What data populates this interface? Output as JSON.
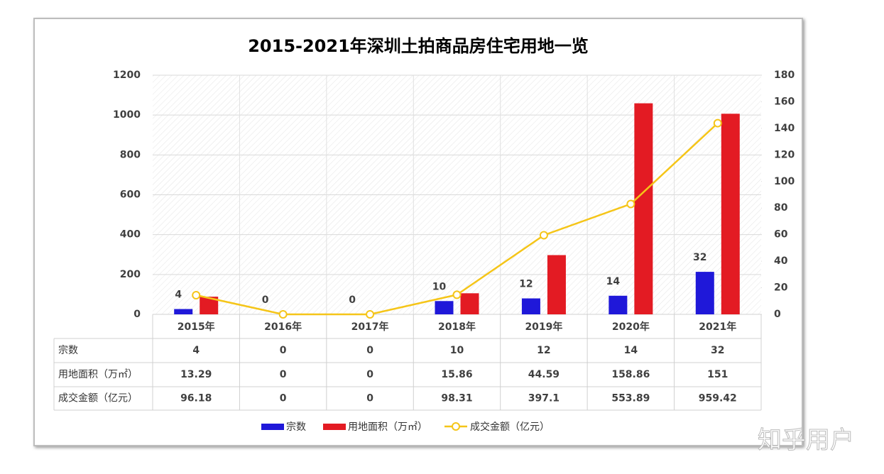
{
  "chart_data": {
    "type": "bar",
    "title": "2015-2021年深圳土拍商品房住宅用地一览",
    "categories": [
      "2015年",
      "2016年",
      "2017年",
      "2018年",
      "2019年",
      "2020年",
      "2021年"
    ],
    "series": [
      {
        "name": "宗数",
        "color": "#1f18d9",
        "axis": "y2",
        "values": [
          4,
          0,
          0,
          10,
          12,
          14,
          32
        ]
      },
      {
        "name": "用地面积（万㎡）",
        "color": "#e31b23",
        "axis": "y2",
        "values": [
          13.29,
          0,
          0,
          15.86,
          44.59,
          158.86,
          151
        ]
      },
      {
        "name": "成交金额（亿元）",
        "color": "#f5c518",
        "type": "line",
        "values": [
          96.18,
          0,
          0,
          98.31,
          397.1,
          553.89,
          959.42
        ]
      }
    ],
    "ylim": [
      0,
      1200
    ],
    "yticks": [
      0,
      200,
      400,
      600,
      800,
      1000,
      1200
    ],
    "y2lim": [
      0,
      180
    ],
    "y2ticks": [
      0,
      20,
      40,
      60,
      80,
      100,
      120,
      140,
      160,
      180
    ],
    "grid": true,
    "legend": "bottom",
    "data_table": true,
    "watermark": "知乎用户"
  }
}
